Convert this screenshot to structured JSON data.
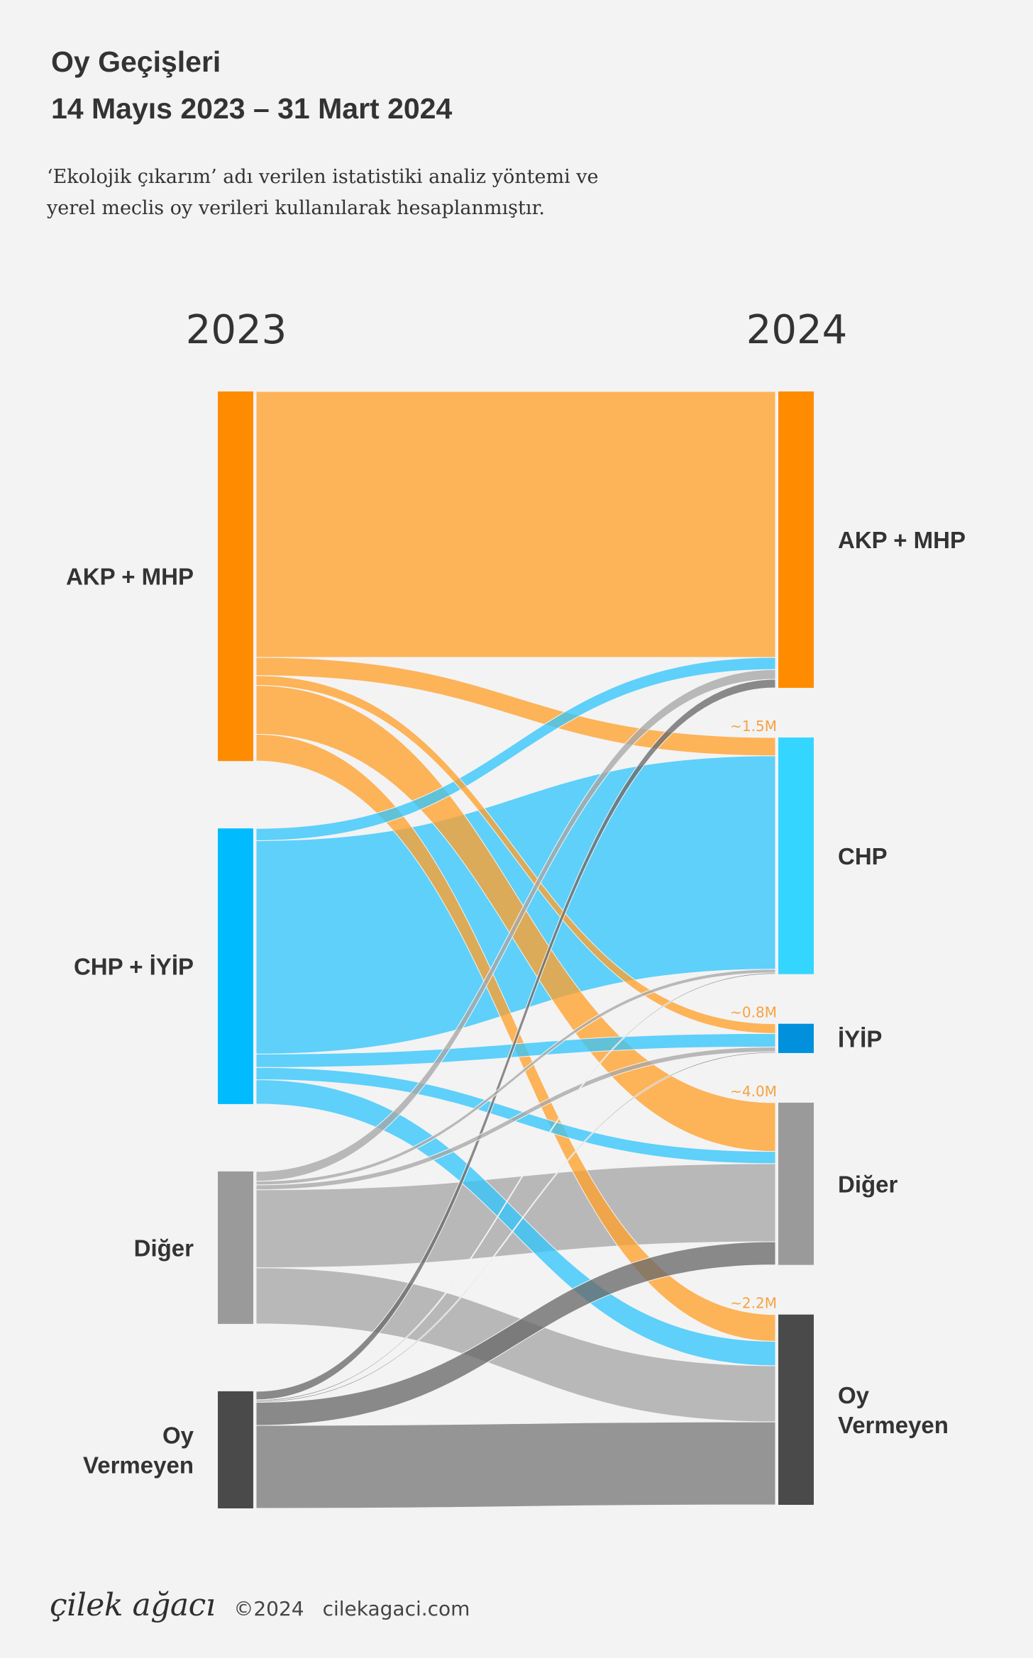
{
  "header": {
    "title_line1": "Oy Geçişleri",
    "title_line2": "14 Mayıs 2023 – 31 Mart 2024",
    "subtitle_line1": "‘Ekolojik çıkarım’ adı verilen istatistiki analiz yöntemi ve",
    "subtitle_line2": "yerel meclis oy verileri kullanılarak hesaplanmıştır."
  },
  "chart_data": {
    "type": "sankey",
    "source_year": "2023",
    "target_year": "2024",
    "sources": [
      {
        "id": "akp_mhp_2023",
        "label_lines": [
          "AKP + MHP"
        ],
        "color": "#ff8c00"
      },
      {
        "id": "chp_iyip_2023",
        "label_lines": [
          "CHP + İYİP"
        ],
        "color": "#00bcff"
      },
      {
        "id": "diger_2023",
        "label_lines": [
          "Diğer"
        ],
        "color": "#9a9a9a"
      },
      {
        "id": "oyvermeyen_2023",
        "label_lines": [
          "Oy",
          "Vermeyen"
        ],
        "color": "#4a4a4a"
      }
    ],
    "targets": [
      {
        "id": "akp_mhp_2024",
        "label_lines": [
          "AKP + MHP"
        ],
        "color": "#ff8c00"
      },
      {
        "id": "chp_2024",
        "label_lines": [
          "CHP"
        ],
        "color": "#34d6ff"
      },
      {
        "id": "iyip_2024",
        "label_lines": [
          "İYİP"
        ],
        "color": "#0090dc"
      },
      {
        "id": "diger_2024",
        "label_lines": [
          "Diğer"
        ],
        "color": "#9a9a9a"
      },
      {
        "id": "oyvermeyen_2024",
        "label_lines": [
          "Oy",
          "Vermeyen"
        ],
        "color": "#4a4a4a"
      }
    ],
    "flows": [
      {
        "source": "akp_mhp_2023",
        "target": "akp_mhp_2024",
        "value": 21.8,
        "color": "#ffa02c"
      },
      {
        "source": "akp_mhp_2023",
        "target": "chp_2024",
        "value": 1.5,
        "color": "#ffa02c",
        "annotation": "~1.5M"
      },
      {
        "source": "akp_mhp_2023",
        "target": "iyip_2024",
        "value": 0.8,
        "color": "#ffa02c",
        "annotation": "~0.8M"
      },
      {
        "source": "akp_mhp_2023",
        "target": "diger_2024",
        "value": 4.0,
        "color": "#ffa02c",
        "annotation": "~4.0M"
      },
      {
        "source": "akp_mhp_2023",
        "target": "oyvermeyen_2024",
        "value": 2.2,
        "color": "#ffa02c",
        "annotation": "~2.2M"
      },
      {
        "source": "chp_iyip_2023",
        "target": "akp_mhp_2024",
        "value": 1.0,
        "color": "#33c5fb"
      },
      {
        "source": "chp_iyip_2023",
        "target": "chp_2024",
        "value": 17.5,
        "color": "#33c5fb"
      },
      {
        "source": "chp_iyip_2023",
        "target": "iyip_2024",
        "value": 1.1,
        "color": "#33c5fb"
      },
      {
        "source": "chp_iyip_2023",
        "target": "diger_2024",
        "value": 1.0,
        "color": "#33c5fb"
      },
      {
        "source": "chp_iyip_2023",
        "target": "oyvermeyen_2024",
        "value": 2.0,
        "color": "#33c5fb"
      },
      {
        "source": "diger_2023",
        "target": "akp_mhp_2024",
        "value": 0.8,
        "color": "#a7a7a7"
      },
      {
        "source": "diger_2023",
        "target": "chp_2024",
        "value": 0.3,
        "color": "#a7a7a7"
      },
      {
        "source": "diger_2023",
        "target": "iyip_2024",
        "value": 0.4,
        "color": "#a7a7a7"
      },
      {
        "source": "diger_2023",
        "target": "diger_2024",
        "value": 6.4,
        "color": "#a7a7a7"
      },
      {
        "source": "diger_2023",
        "target": "oyvermeyen_2024",
        "value": 4.6,
        "color": "#a7a7a7"
      },
      {
        "source": "oyvermeyen_2023",
        "target": "akp_mhp_2024",
        "value": 0.7,
        "color": "#6a6a6a"
      },
      {
        "source": "oyvermeyen_2023",
        "target": "chp_2024",
        "value": 0.1,
        "color": "#6a6a6a"
      },
      {
        "source": "oyvermeyen_2023",
        "target": "iyip_2024",
        "value": 0.1,
        "color": "#6a6a6a"
      },
      {
        "source": "oyvermeyen_2023",
        "target": "diger_2024",
        "value": 1.9,
        "color": "#6a6a6a"
      },
      {
        "source": "oyvermeyen_2023",
        "target": "oyvermeyen_2024",
        "value": 6.8,
        "color": "#7a7a7a"
      }
    ]
  },
  "footer": {
    "brand": "çilek ağacı",
    "copyright": "©2024",
    "site": "cilekagaci.com"
  }
}
